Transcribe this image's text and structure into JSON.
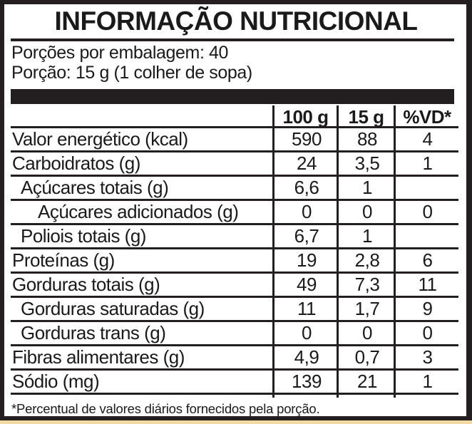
{
  "title": "INFORMAÇÃO NUTRICIONAL",
  "servings_per_package": "Porções por embalagem: 40",
  "serving_size": "Porção: 15 g (1 colher de sopa)",
  "columns": [
    "100 g",
    "15 g",
    "%VD*"
  ],
  "rows": [
    {
      "label": "Valor energético (kcal)",
      "indent": 0,
      "v100": "590",
      "v15": "88",
      "vd": "4"
    },
    {
      "label": "Carboidratos (g)",
      "indent": 0,
      "v100": "24",
      "v15": "3,5",
      "vd": "1"
    },
    {
      "label": "Açúcares totais (g)",
      "indent": 1,
      "v100": "6,6",
      "v15": "1",
      "vd": ""
    },
    {
      "label": "Açúcares adicionados (g)",
      "indent": 2,
      "v100": "0",
      "v15": "0",
      "vd": "0"
    },
    {
      "label": "Poliois totais (g)",
      "indent": 1,
      "v100": "6,7",
      "v15": "1",
      "vd": ""
    },
    {
      "label": "Proteínas (g)",
      "indent": 0,
      "v100": "19",
      "v15": "2,8",
      "vd": "6"
    },
    {
      "label": "Gorduras totais (g)",
      "indent": 0,
      "v100": "49",
      "v15": "7,3",
      "vd": "11"
    },
    {
      "label": "Gorduras saturadas (g)",
      "indent": 1,
      "v100": "11",
      "v15": "1,7",
      "vd": "9"
    },
    {
      "label": "Gorduras trans (g)",
      "indent": 1,
      "v100": "0",
      "v15": "0",
      "vd": "0"
    },
    {
      "label": "Fibras alimentares (g)",
      "indent": 0,
      "v100": "4,9",
      "v15": "0,7",
      "vd": "3"
    },
    {
      "label": "Sódio (mg)",
      "indent": 0,
      "v100": "139",
      "v15": "21",
      "vd": "1"
    }
  ],
  "footnote": "*Percentual de valores diários fornecidos pela porção."
}
